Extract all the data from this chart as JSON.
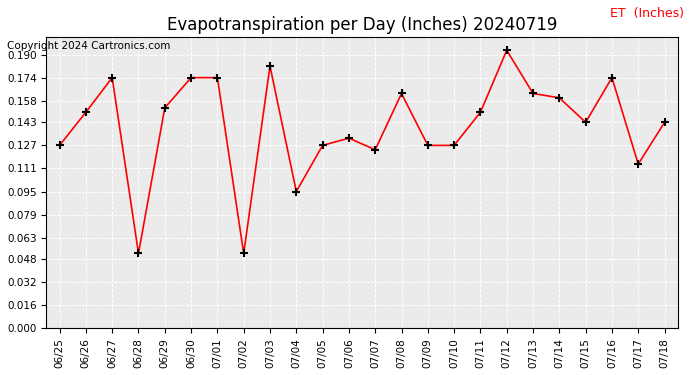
{
  "title": "Evapotranspiration per Day (Inches) 20240719",
  "copyright": "Copyright 2024 Cartronics.com",
  "legend_label": "ET  (Inches)",
  "dates": [
    "06/25",
    "06/26",
    "06/27",
    "06/28",
    "06/29",
    "06/30",
    "07/01",
    "07/02",
    "07/03",
    "07/04",
    "07/05",
    "07/06",
    "07/07",
    "07/08",
    "07/09",
    "07/10",
    "07/11",
    "07/12",
    "07/13",
    "07/14",
    "07/15",
    "07/16",
    "07/17",
    "07/18"
  ],
  "values": [
    0.127,
    0.15,
    0.174,
    0.052,
    0.153,
    0.174,
    0.174,
    0.052,
    0.182,
    0.095,
    0.127,
    0.132,
    0.124,
    0.163,
    0.127,
    0.127,
    0.15,
    0.193,
    0.163,
    0.16,
    0.143,
    0.174,
    0.114,
    0.143
  ],
  "line_color": "red",
  "marker_color": "black",
  "bg_color": "#ffffff",
  "plot_bg_color": "#ebebeb",
  "title_fontsize": 12,
  "copyright_fontsize": 7.5,
  "legend_color": "red",
  "legend_fontsize": 9,
  "yticks": [
    0.0,
    0.016,
    0.032,
    0.048,
    0.063,
    0.079,
    0.095,
    0.111,
    0.127,
    0.143,
    0.158,
    0.174,
    0.19
  ],
  "ylim": [
    0.0,
    0.202
  ]
}
